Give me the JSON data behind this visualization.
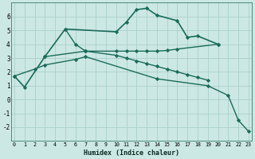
{
  "xlabel": "Humidex (Indice chaleur)",
  "bg_color": "#cce8e4",
  "grid_color": "#aacfcb",
  "line_color": "#1a6b5a",
  "x_ticks": [
    0,
    1,
    2,
    3,
    4,
    5,
    6,
    7,
    8,
    9,
    10,
    11,
    12,
    13,
    14,
    15,
    16,
    17,
    18,
    19,
    20,
    21,
    22,
    23
  ],
  "ylim": [
    -3,
    7
  ],
  "xlim": [
    -0.3,
    23.3
  ],
  "y_ticks": [
    -2,
    -1,
    0,
    1,
    2,
    3,
    4,
    5,
    6
  ],
  "line1_x": [
    0,
    1,
    3,
    5,
    10,
    11,
    12,
    13,
    14,
    16,
    17,
    18,
    20
  ],
  "line1_y": [
    1.7,
    0.9,
    3.1,
    5.1,
    4.9,
    5.6,
    6.5,
    6.6,
    6.1,
    5.7,
    4.5,
    4.6,
    4.0
  ],
  "line2_x": [
    3,
    7,
    10,
    11,
    12,
    13,
    14,
    15,
    16,
    20
  ],
  "line2_y": [
    3.1,
    3.5,
    3.5,
    3.5,
    3.5,
    3.5,
    3.5,
    3.55,
    3.65,
    4.0
  ],
  "line3_x": [
    5,
    6,
    7
  ],
  "line3_y": [
    5.1,
    4.0,
    3.5
  ],
  "line4_x": [
    0,
    2,
    3,
    6,
    7,
    14,
    19,
    21,
    22,
    23
  ],
  "line4_y": [
    1.7,
    2.2,
    2.5,
    2.9,
    3.1,
    1.5,
    1.0,
    0.3,
    -1.5,
    -2.3
  ],
  "line5_x": [
    7,
    10,
    11,
    12,
    13,
    14,
    15,
    16,
    17,
    18,
    19
  ],
  "line5_y": [
    3.5,
    3.2,
    3.0,
    2.8,
    2.6,
    2.4,
    2.2,
    2.0,
    1.8,
    1.6,
    1.4
  ]
}
